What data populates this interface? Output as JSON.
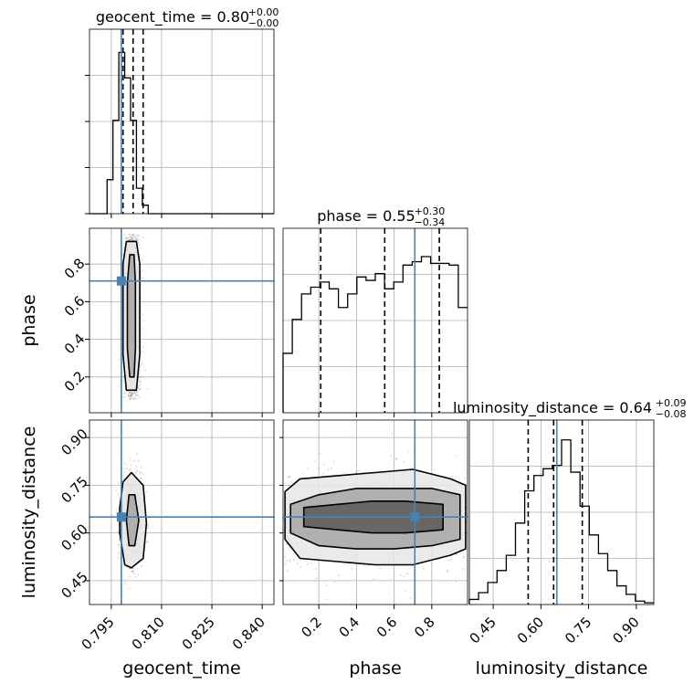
{
  "chart_data": {
    "type": "corner",
    "parameters": [
      "geocent_time",
      "phase",
      "luminosity_distance"
    ],
    "truths": {
      "geocent_time": 0.798,
      "phase": 0.71,
      "luminosity_distance": 0.65
    },
    "colors": {
      "truth": "#4682b4",
      "hist": "#000000",
      "grid": "#b0b0b0",
      "scatter": "#8c8c8c"
    },
    "grid": true,
    "axes": {
      "geocent_time": {
        "range": [
          0.7885,
          0.8435
        ],
        "ticks": [
          0.795,
          0.81,
          0.825,
          0.84
        ],
        "tick_labels": [
          "0.795",
          "0.810",
          "0.825",
          "0.840"
        ]
      },
      "phase": {
        "range": [
          0.01,
          0.99
        ],
        "ticks": [
          0.2,
          0.4,
          0.6,
          0.8
        ],
        "tick_labels": [
          "0.2",
          "0.4",
          "0.6",
          "0.8"
        ]
      },
      "luminosity_distance": {
        "range": [
          0.375,
          0.955
        ],
        "ticks": [
          0.45,
          0.6,
          0.75,
          0.9
        ],
        "tick_labels": [
          "0.45",
          "0.60",
          "0.75",
          "0.90"
        ]
      }
    },
    "titles": [
      {
        "param": "geocent_time",
        "text": "geocent_time = 0.80",
        "plus": "+0.00",
        "minus": "−0.00"
      },
      {
        "param": "phase",
        "text": "phase = 0.55",
        "plus": "+0.30",
        "minus": "−0.34"
      },
      {
        "param": "luminosity_distance",
        "text": "luminosity_distance = 0.64",
        "plus": "+0.09",
        "minus": "−0.08"
      }
    ],
    "quantiles": {
      "geocent_time": [
        0.7985,
        0.8015,
        0.8045
      ],
      "phase": [
        0.21,
        0.55,
        0.84
      ],
      "luminosity_distance": [
        0.56,
        0.64,
        0.73
      ]
    },
    "histograms": {
      "geocent_time": {
        "edges": [
          0.7885,
          0.79025,
          0.792,
          0.79375,
          0.7955,
          0.79725,
          0.799,
          0.80075,
          0.8025,
          0.80425,
          0.806,
          0.80775,
          0.8095,
          0.81125,
          0.8435
        ],
        "counts": [
          0,
          0,
          0,
          0.2,
          0.55,
          0.95,
          0.8,
          0.55,
          0.15,
          0.05,
          0,
          0,
          0,
          0
        ]
      },
      "phase": {
        "edges": [
          0.01,
          0.059,
          0.108,
          0.157,
          0.206,
          0.255,
          0.304,
          0.353,
          0.402,
          0.451,
          0.5,
          0.549,
          0.598,
          0.647,
          0.696,
          0.745,
          0.794,
          0.843,
          0.892,
          0.941,
          0.99
        ],
        "counts": [
          0.35,
          0.55,
          0.7,
          0.74,
          0.77,
          0.73,
          0.62,
          0.7,
          0.8,
          0.78,
          0.82,
          0.73,
          0.77,
          0.87,
          0.89,
          0.92,
          0.88,
          0.88,
          0.87,
          0.62
        ]
      },
      "luminosity_distance": {
        "edges": [
          0.375,
          0.404,
          0.433,
          0.462,
          0.491,
          0.52,
          0.549,
          0.578,
          0.607,
          0.636,
          0.665,
          0.694,
          0.723,
          0.752,
          0.781,
          0.81,
          0.839,
          0.868,
          0.897,
          0.926,
          0.955
        ],
        "counts": [
          0.03,
          0.07,
          0.13,
          0.2,
          0.29,
          0.48,
          0.67,
          0.76,
          0.8,
          0.82,
          0.97,
          0.78,
          0.58,
          0.41,
          0.3,
          0.2,
          0.11,
          0.06,
          0.02,
          0.01
        ]
      }
    },
    "contours_2d": {
      "phase_vs_geocent_time": [
        [
          [
            0.7995,
            0.13
          ],
          [
            0.8025,
            0.13
          ],
          [
            0.8035,
            0.32
          ],
          [
            0.8035,
            0.56
          ],
          [
            0.8035,
            0.8
          ],
          [
            0.8025,
            0.92
          ],
          [
            0.7995,
            0.92
          ],
          [
            0.7985,
            0.8
          ],
          [
            0.7985,
            0.56
          ],
          [
            0.7985,
            0.32
          ]
        ],
        [
          [
            0.8005,
            0.2
          ],
          [
            0.8018,
            0.2
          ],
          [
            0.8022,
            0.35
          ],
          [
            0.8022,
            0.5
          ],
          [
            0.8022,
            0.7
          ],
          [
            0.8018,
            0.85
          ],
          [
            0.8005,
            0.85
          ],
          [
            0.7998,
            0.7
          ],
          [
            0.7998,
            0.5
          ],
          [
            0.7998,
            0.35
          ]
        ]
      ],
      "luminosity_distance_vs_geocent_time": [
        [
          [
            0.7975,
            0.6
          ],
          [
            0.799,
            0.5
          ],
          [
            0.801,
            0.49
          ],
          [
            0.8045,
            0.52
          ],
          [
            0.8055,
            0.63
          ],
          [
            0.8045,
            0.75
          ],
          [
            0.801,
            0.79
          ],
          [
            0.7985,
            0.76
          ],
          [
            0.7975,
            0.68
          ]
        ],
        [
          [
            0.7995,
            0.64
          ],
          [
            0.8003,
            0.56
          ],
          [
            0.802,
            0.56
          ],
          [
            0.8032,
            0.64
          ],
          [
            0.802,
            0.72
          ],
          [
            0.8003,
            0.72
          ]
        ]
      ],
      "luminosity_distance_vs_phase": [
        [
          [
            0.02,
            0.58
          ],
          [
            0.1,
            0.52
          ],
          [
            0.3,
            0.51
          ],
          [
            0.5,
            0.5
          ],
          [
            0.7,
            0.5
          ],
          [
            0.9,
            0.53
          ],
          [
            0.98,
            0.55
          ],
          [
            0.98,
            0.75
          ],
          [
            0.9,
            0.77
          ],
          [
            0.7,
            0.8
          ],
          [
            0.5,
            0.79
          ],
          [
            0.3,
            0.78
          ],
          [
            0.1,
            0.77
          ],
          [
            0.02,
            0.73
          ]
        ],
        [
          [
            0.05,
            0.6
          ],
          [
            0.2,
            0.56
          ],
          [
            0.4,
            0.55
          ],
          [
            0.6,
            0.55
          ],
          [
            0.8,
            0.56
          ],
          [
            0.95,
            0.58
          ],
          [
            0.95,
            0.72
          ],
          [
            0.8,
            0.74
          ],
          [
            0.6,
            0.74
          ],
          [
            0.4,
            0.74
          ],
          [
            0.2,
            0.72
          ],
          [
            0.05,
            0.69
          ]
        ],
        [
          [
            0.12,
            0.62
          ],
          [
            0.3,
            0.61
          ],
          [
            0.48,
            0.6
          ],
          [
            0.66,
            0.6
          ],
          [
            0.86,
            0.61
          ],
          [
            0.86,
            0.69
          ],
          [
            0.66,
            0.7
          ],
          [
            0.48,
            0.7
          ],
          [
            0.3,
            0.69
          ],
          [
            0.12,
            0.68
          ]
        ]
      ]
    }
  }
}
